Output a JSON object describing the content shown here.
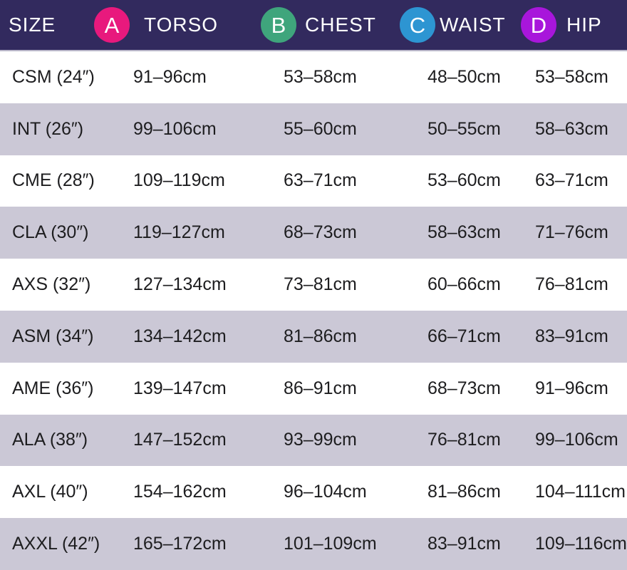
{
  "header": {
    "bg_color": "#322A5E",
    "text_color": "#FFFFFF",
    "columns": [
      {
        "label": "SIZE"
      },
      {
        "badge": "A",
        "label": "TORSO",
        "badge_color": "#E8197D"
      },
      {
        "badge": "B",
        "label": "CHEST",
        "badge_color": "#3FA57C"
      },
      {
        "badge": "C",
        "label": "WAIST",
        "badge_color": "#2D95D2"
      },
      {
        "badge": "D",
        "label": "HIP",
        "badge_color": "#A816DB"
      }
    ]
  },
  "colors": {
    "row_default": "#FFFFFF",
    "row_alternate": "#CBC8D6",
    "cell_text": "#1D1D1F"
  },
  "chart_data": {
    "type": "table",
    "title": "Size chart (torso, chest, waist, hip measurements)",
    "columns": [
      "SIZE",
      "TORSO",
      "CHEST",
      "WAIST",
      "HIP"
    ],
    "rows": [
      {
        "size": "CSM (24″)",
        "torso": "91–96cm",
        "chest": "53–58cm",
        "waist": "48–50cm",
        "hip": "53–58cm"
      },
      {
        "size": "INT (26″)",
        "torso": "99–106cm",
        "chest": "55–60cm",
        "waist": "50–55cm",
        "hip": "58–63cm"
      },
      {
        "size": "CME (28″)",
        "torso": "109–119cm",
        "chest": "63–71cm",
        "waist": "53–60cm",
        "hip": "63–71cm"
      },
      {
        "size": "CLA (30″)",
        "torso": "119–127cm",
        "chest": "68–73cm",
        "waist": "58–63cm",
        "hip": "71–76cm"
      },
      {
        "size": "AXS (32″)",
        "torso": "127–134cm",
        "chest": "73–81cm",
        "waist": "60–66cm",
        "hip": "76–81cm"
      },
      {
        "size": "ASM (34″)",
        "torso": "134–142cm",
        "chest": "81–86cm",
        "waist": "66–71cm",
        "hip": "83–91cm"
      },
      {
        "size": "AME (36″)",
        "torso": "139–147cm",
        "chest": "86–91cm",
        "waist": "68–73cm",
        "hip": "91–96cm"
      },
      {
        "size": "ALA (38″)",
        "torso": "147–152cm",
        "chest": "93–99cm",
        "waist": "76–81cm",
        "hip": "99–106cm"
      },
      {
        "size": "AXL (40″)",
        "torso": "154–162cm",
        "chest": "96–104cm",
        "waist": "81–86cm",
        "hip": "104–111cm"
      },
      {
        "size": "AXXL (42″)",
        "torso": "165–172cm",
        "chest": "101–109cm",
        "waist": "83–91cm",
        "hip": "109–116cm"
      }
    ]
  }
}
